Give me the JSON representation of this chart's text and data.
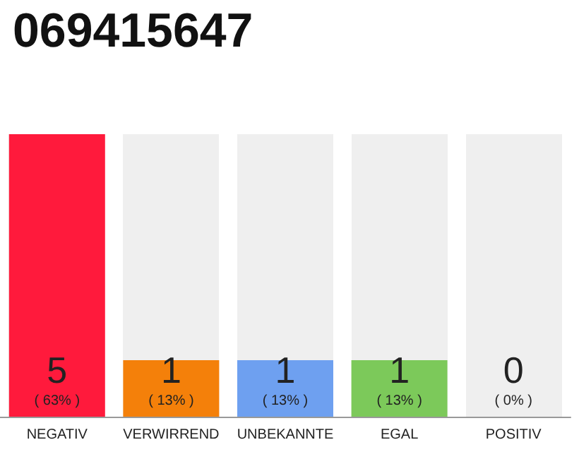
{
  "chart_data": {
    "type": "bar",
    "title": "069415647",
    "categories": [
      "NEGATIV",
      "VERWIRREND",
      "UNBEKANNTE",
      "EGAL",
      "POSITIV"
    ],
    "values": [
      5,
      1,
      1,
      1,
      0
    ],
    "colors": [
      "#ff1a3c",
      "#f4800a",
      "#6ea0f0",
      "#7cc95a",
      "#c8c8c8"
    ],
    "value_labels": [
      "5\n( 63% )",
      "1\n( 13% )",
      "1\n( 13% )",
      "1\n( 13% )",
      "0\n( 0% )"
    ],
    "grid": false
  }
}
